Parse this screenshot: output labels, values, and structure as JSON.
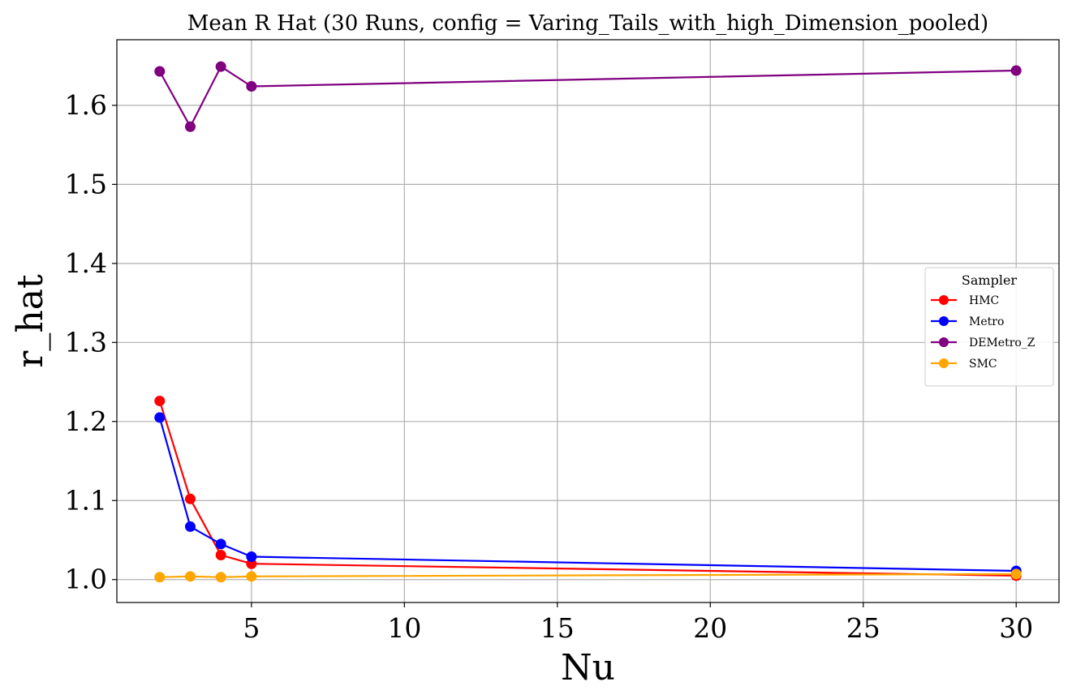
{
  "chart_data": {
    "type": "line",
    "title": "Mean R Hat (30 Runs, config = Varing_Tails_with_high_Dimension_pooled)",
    "xlabel": "Nu",
    "ylabel": "r_hat",
    "xlim": [
      0.6,
      31.4
    ],
    "ylim": [
      0.971,
      1.683
    ],
    "xticks": [
      5,
      10,
      15,
      20,
      25,
      30
    ],
    "yticks": [
      1.0,
      1.1,
      1.2,
      1.3,
      1.4,
      1.5,
      1.6
    ],
    "xtick_labels": [
      "5",
      "10",
      "15",
      "20",
      "25",
      "30"
    ],
    "ytick_labels": [
      "1.0",
      "1.1",
      "1.2",
      "1.3",
      "1.4",
      "1.5",
      "1.6"
    ],
    "grid": true,
    "legend": {
      "title": "Sampler",
      "position": "center-right"
    },
    "x": [
      2,
      3,
      4,
      5,
      30
    ],
    "series": [
      {
        "name": "HMC",
        "color": "#ff0000",
        "values": [
          1.226,
          1.102,
          1.031,
          1.02,
          1.005
        ]
      },
      {
        "name": "Metro",
        "color": "#0000ff",
        "values": [
          1.205,
          1.067,
          1.045,
          1.029,
          1.011
        ]
      },
      {
        "name": "DEMetro_Z",
        "color": "#800080",
        "values": [
          1.643,
          1.573,
          1.649,
          1.624,
          1.644
        ]
      },
      {
        "name": "SMC",
        "color": "#ffa500",
        "values": [
          1.003,
          1.004,
          1.003,
          1.004,
          1.007
        ]
      }
    ]
  }
}
